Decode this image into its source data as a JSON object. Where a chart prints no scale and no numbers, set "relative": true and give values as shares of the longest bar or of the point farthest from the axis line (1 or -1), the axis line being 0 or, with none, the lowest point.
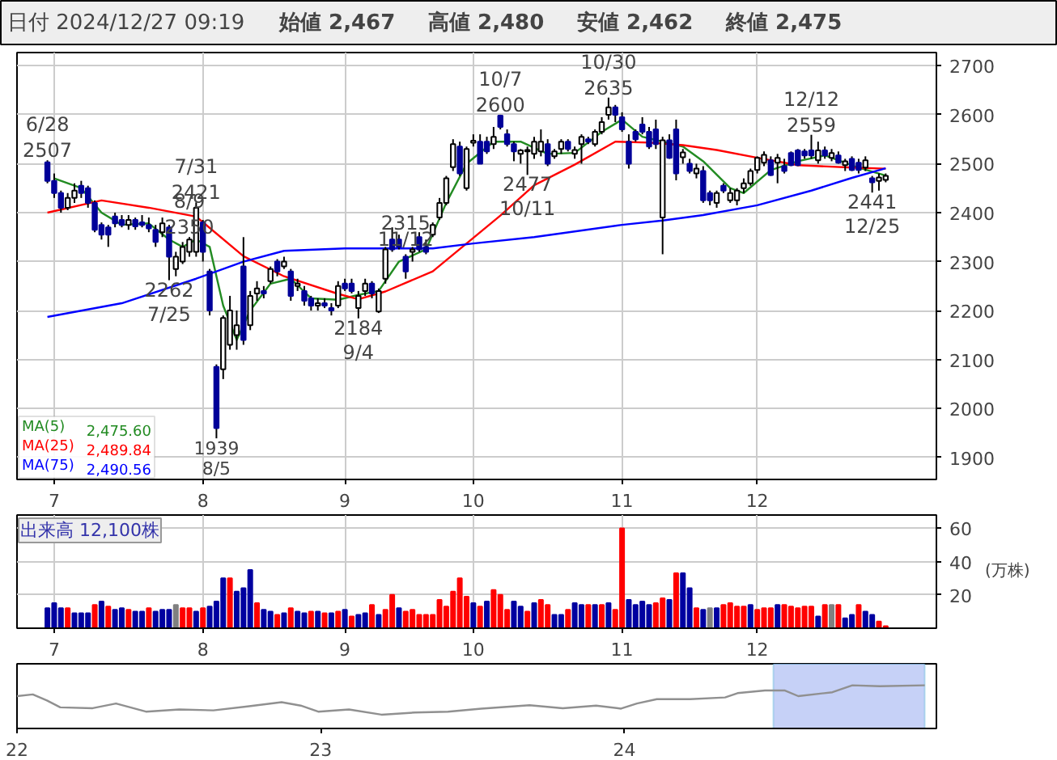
{
  "chart_data": [
    {
      "type": "candlestick",
      "title": "日付 2024/12/27 09:19",
      "annotations": [
        "始値 2,467",
        "高値 2,480",
        "安値 2,462",
        "終値 2,475",
        {
          "text": "6/28\n2507",
          "y": 2507
        },
        {
          "text": "7/31\n2421",
          "y": 2421
        },
        {
          "text": "2262\n7/25",
          "y": 2262
        },
        {
          "text": "8/9\n2350",
          "y": 2350
        },
        {
          "text": "1939\n8/5",
          "y": 1939
        },
        {
          "text": "2184\n9/4",
          "y": 2184
        },
        {
          "text": "10/7\n2600",
          "y": 2600
        },
        {
          "text": "2477\n10/11",
          "y": 2477
        },
        {
          "text": "10/30\n2635",
          "y": 2635
        },
        {
          "text": "2315\n11/12",
          "y": 2315
        },
        {
          "text": "12/12\n2559",
          "y": 2559
        },
        {
          "text": "2441\n12/25",
          "y": 2441
        }
      ],
      "categories": [
        null,
        "7",
        null,
        null,
        null,
        null,
        null,
        null,
        null,
        null,
        null,
        null,
        null,
        null,
        null,
        null,
        null,
        null,
        null,
        null,
        null,
        null,
        null,
        "8",
        null,
        null,
        null,
        null,
        null,
        null,
        null,
        null,
        null,
        null,
        null,
        null,
        null,
        null,
        null,
        null,
        null,
        null,
        null,
        null,
        "9",
        null,
        null,
        null,
        null,
        null,
        null,
        null,
        null,
        null,
        null,
        null,
        null,
        null,
        null,
        null,
        null,
        null,
        null,
        "10",
        null,
        null,
        null,
        null,
        null,
        null,
        null,
        null,
        null,
        null,
        null,
        null,
        null,
        null,
        null,
        null,
        null,
        null,
        null,
        null,
        null,
        "11",
        null,
        null,
        null,
        null,
        null,
        null,
        null,
        null,
        null,
        null,
        null,
        null,
        null,
        null,
        null,
        null,
        null,
        null,
        null,
        "12",
        null,
        null,
        null,
        null,
        null,
        null,
        null,
        null,
        null,
        null,
        null,
        null,
        null,
        null,
        null,
        null,
        null,
        null,
        null
      ],
      "ohlc": [
        [
          2503,
          2507,
          2460,
          2465
        ],
        [
          2465,
          2480,
          2430,
          2440
        ],
        [
          2440,
          2445,
          2400,
          2410
        ],
        [
          2410,
          2440,
          2405,
          2430
        ],
        [
          2430,
          2460,
          2420,
          2445
        ],
        [
          2455,
          2465,
          2430,
          2440
        ],
        [
          2450,
          2455,
          2410,
          2420
        ],
        [
          2420,
          2425,
          2360,
          2365
        ],
        [
          2375,
          2380,
          2345,
          2355
        ],
        [
          2370,
          2375,
          2330,
          2355
        ],
        [
          2392,
          2400,
          2370,
          2378
        ],
        [
          2385,
          2395,
          2370,
          2375
        ],
        [
          2375,
          2395,
          2365,
          2385
        ],
        [
          2385,
          2390,
          2365,
          2372
        ],
        [
          2380,
          2395,
          2370,
          2375
        ],
        [
          2375,
          2390,
          2360,
          2368
        ],
        [
          2365,
          2375,
          2330,
          2340
        ],
        [
          2360,
          2390,
          2350,
          2378
        ],
        [
          2370,
          2375,
          2262,
          2310
        ],
        [
          2285,
          2320,
          2270,
          2310
        ],
        [
          2300,
          2340,
          2295,
          2330
        ],
        [
          2320,
          2350,
          2310,
          2345
        ],
        [
          2320,
          2421,
          2310,
          2410
        ],
        [
          2380,
          2385,
          2300,
          2320
        ],
        [
          2280,
          2285,
          2190,
          2200
        ],
        [
          2085,
          2090,
          1939,
          1960
        ],
        [
          2080,
          2190,
          2060,
          2185
        ],
        [
          2130,
          2230,
          2120,
          2200
        ],
        [
          2150,
          2200,
          2120,
          2170
        ],
        [
          2290,
          2350,
          2130,
          2140
        ],
        [
          2170,
          2240,
          2160,
          2230
        ],
        [
          2235,
          2260,
          2220,
          2245
        ],
        [
          2240,
          2250,
          2225,
          2235
        ],
        [
          2260,
          2290,
          2255,
          2285
        ],
        [
          2300,
          2305,
          2270,
          2280
        ],
        [
          2290,
          2310,
          2285,
          2300
        ],
        [
          2280,
          2285,
          2220,
          2230
        ],
        [
          2250,
          2265,
          2240,
          2255
        ],
        [
          2240,
          2250,
          2210,
          2220
        ],
        [
          2225,
          2230,
          2200,
          2210
        ],
        [
          2210,
          2225,
          2200,
          2215
        ],
        [
          2215,
          2225,
          2205,
          2210
        ],
        [
          2205,
          2215,
          2190,
          2200
        ],
        [
          2210,
          2260,
          2205,
          2250
        ],
        [
          2255,
          2265,
          2240,
          2245
        ],
        [
          2255,
          2265,
          2235,
          2240
        ],
        [
          2205,
          2240,
          2184,
          2230
        ],
        [
          2240,
          2265,
          2230,
          2255
        ],
        [
          2255,
          2260,
          2225,
          2235
        ],
        [
          2198,
          2245,
          2195,
          2240
        ],
        [
          2265,
          2330,
          2255,
          2325
        ],
        [
          2345,
          2370,
          2320,
          2325
        ],
        [
          2345,
          2355,
          2325,
          2330
        ],
        [
          2310,
          2315,
          2265,
          2280
        ],
        [
          2320,
          2330,
          2300,
          2325
        ],
        [
          2350,
          2360,
          2320,
          2325
        ],
        [
          2330,
          2345,
          2315,
          2320
        ],
        [
          2355,
          2380,
          2350,
          2375
        ],
        [
          2390,
          2430,
          2385,
          2420
        ],
        [
          2420,
          2475,
          2415,
          2470
        ],
        [
          2493,
          2550,
          2485,
          2540
        ],
        [
          2535,
          2545,
          2475,
          2480
        ],
        [
          2450,
          2535,
          2445,
          2530
        ],
        [
          2543,
          2560,
          2535,
          2547
        ],
        [
          2545,
          2560,
          2500,
          2500
        ],
        [
          2545,
          2555,
          2520,
          2525
        ],
        [
          2540,
          2575,
          2530,
          2555
        ],
        [
          2598,
          2600,
          2570,
          2575
        ],
        [
          2560,
          2570,
          2535,
          2540
        ],
        [
          2540,
          2545,
          2505,
          2525
        ],
        [
          2520,
          2530,
          2500,
          2527
        ],
        [
          2525,
          2535,
          2477,
          2528
        ],
        [
          2520,
          2555,
          2510,
          2545
        ],
        [
          2525,
          2570,
          2515,
          2545
        ],
        [
          2540,
          2550,
          2495,
          2500
        ],
        [
          2515,
          2530,
          2510,
          2525
        ],
        [
          2530,
          2550,
          2520,
          2545
        ],
        [
          2545,
          2550,
          2525,
          2530
        ],
        [
          2520,
          2535,
          2510,
          2528
        ],
        [
          2540,
          2560,
          2500,
          2555
        ],
        [
          2550,
          2555,
          2540,
          2545
        ],
        [
          2540,
          2570,
          2535,
          2565
        ],
        [
          2565,
          2595,
          2560,
          2585
        ],
        [
          2600,
          2635,
          2590,
          2615
        ],
        [
          2615,
          2620,
          2585,
          2600
        ],
        [
          2595,
          2605,
          2565,
          2570
        ],
        [
          2545,
          2560,
          2490,
          2500
        ],
        [
          2565,
          2570,
          2545,
          2550
        ],
        [
          2580,
          2595,
          2560,
          2565
        ],
        [
          2565,
          2575,
          2530,
          2535
        ],
        [
          2570,
          2590,
          2530,
          2540
        ],
        [
          2390,
          2555,
          2315,
          2548
        ],
        [
          2548,
          2560,
          2510,
          2512
        ],
        [
          2570,
          2590,
          2466,
          2480
        ],
        [
          2513,
          2530,
          2500,
          2523
        ],
        [
          2500,
          2510,
          2480,
          2485
        ],
        [
          2480,
          2500,
          2470,
          2490
        ],
        [
          2485,
          2495,
          2420,
          2425
        ],
        [
          2440,
          2445,
          2415,
          2425
        ],
        [
          2420,
          2445,
          2410,
          2440
        ],
        [
          2455,
          2460,
          2440,
          2445
        ],
        [
          2425,
          2450,
          2420,
          2440
        ],
        [
          2425,
          2450,
          2415,
          2445
        ],
        [
          2450,
          2470,
          2440,
          2460
        ],
        [
          2460,
          2490,
          2455,
          2485
        ],
        [
          2487,
          2515,
          2480,
          2512
        ],
        [
          2502,
          2525,
          2495,
          2518
        ],
        [
          2507,
          2515,
          2475,
          2477
        ],
        [
          2502,
          2520,
          2460,
          2512
        ],
        [
          2495,
          2510,
          2480,
          2485
        ],
        [
          2522,
          2525,
          2495,
          2497
        ],
        [
          2527,
          2530,
          2495,
          2497
        ],
        [
          2525,
          2530,
          2510,
          2517
        ],
        [
          2527,
          2559,
          2510,
          2517
        ],
        [
          2507,
          2545,
          2500,
          2527
        ],
        [
          2527,
          2535,
          2510,
          2517
        ],
        [
          2512,
          2530,
          2505,
          2522
        ],
        [
          2517,
          2525,
          2500,
          2502
        ],
        [
          2497,
          2510,
          2485,
          2505
        ],
        [
          2510,
          2515,
          2485,
          2487
        ],
        [
          2502,
          2510,
          2480,
          2487
        ],
        [
          2492,
          2515,
          2485,
          2507
        ],
        [
          2470,
          2475,
          2441,
          2462
        ],
        [
          2465,
          2480,
          2445,
          2472
        ],
        [
          2467,
          2480,
          2462,
          2475
        ]
      ],
      "colors": [
        "#000099",
        "#000099",
        "#000099",
        "#ffffff",
        "#ffffff",
        "#000099",
        "#000099",
        "#000099",
        "#000099",
        "#000099",
        "#000099",
        "#000099",
        "#ffffff",
        "#000099",
        "#000099",
        "#000099",
        "#000099",
        "#ffffff",
        "#000099",
        "#ffffff",
        "#ffffff",
        "#ffffff",
        "#ffffff",
        "#000099",
        "#000099",
        "#000099",
        "#ffffff",
        "#ffffff",
        "#ffffff",
        "#000099",
        "#ffffff",
        "#ffffff",
        "#000099",
        "#ffffff",
        "#000099",
        "#ffffff",
        "#000099",
        "#ffffff",
        "#000099",
        "#000099",
        "#ffffff",
        "#000099",
        "#000099",
        "#ffffff",
        "#000099",
        "#000099",
        "#ffffff",
        "#ffffff",
        "#000099",
        "#ffffff",
        "#ffffff",
        "#000099",
        "#000099",
        "#000099",
        "#ffffff",
        "#000099",
        "#000099",
        "#ffffff",
        "#ffffff",
        "#ffffff",
        "#ffffff",
        "#000099",
        "#ffffff",
        "#ffffff",
        "#000099",
        "#000099",
        "#ffffff",
        "#000099",
        "#000099",
        "#000099",
        "#ffffff",
        "#ffffff",
        "#ffffff",
        "#ffffff",
        "#000099",
        "#ffffff",
        "#ffffff",
        "#000099",
        "#ffffff",
        "#ffffff",
        "#000099",
        "#ffffff",
        "#ffffff",
        "#ffffff",
        "#000099",
        "#000099",
        "#000099",
        "#000099",
        "#000099",
        "#000099",
        "#000099",
        "#ffffff",
        "#000099",
        "#000099",
        "#ffffff",
        "#000099",
        "#ffffff",
        "#000099",
        "#000099",
        "#ffffff",
        "#000099",
        "#ffffff",
        "#ffffff",
        "#ffffff",
        "#ffffff",
        "#ffffff",
        "#ffffff",
        "#000099",
        "#ffffff",
        "#000099",
        "#000099",
        "#000099",
        "#000099",
        "#000099",
        "#ffffff",
        "#000099",
        "#ffffff",
        "#000099",
        "#ffffff",
        "#000099",
        "#000099",
        "#ffffff",
        "#000099",
        "#ffffff",
        "#ffffff"
      ],
      "series": [
        {
          "name": "MA(5) 2,475.60",
          "type": "line",
          "color": "#228b22",
          "values": [
            null,
            2470,
            null,
            null,
            null,
            2450,
            null,
            null,
            2400,
            null,
            null,
            2375,
            null,
            null,
            null,
            2378,
            null,
            null,
            2345,
            null,
            2330,
            null,
            2345,
            null,
            2330,
            null,
            2210,
            null,
            2140,
            null,
            2200,
            null,
            null,
            2255,
            null,
            null,
            2265,
            null,
            null,
            2225,
            null,
            null,
            null,
            2222,
            null,
            null,
            2232,
            null,
            null,
            2240,
            null,
            null,
            2300,
            null,
            null,
            null,
            2325,
            null,
            null,
            2420,
            null,
            null,
            2500,
            null,
            null,
            null,
            2545,
            null,
            null,
            null,
            2545,
            null,
            null,
            null,
            2520,
            null,
            null,
            null,
            2522,
            null,
            null,
            null,
            2565,
            null,
            null,
            2590,
            null,
            null,
            2555,
            null,
            null,
            2545,
            null,
            null,
            2535,
            null,
            null,
            2505,
            null,
            null,
            null,
            2450,
            null,
            2440,
            null,
            null,
            null,
            2487,
            null,
            null,
            null,
            2505,
            null,
            null,
            null,
            2517,
            null,
            null,
            null,
            null,
            2492,
            null,
            null,
            null,
            2475.6
          ]
        },
        {
          "name": "MA(25) 2,489.84",
          "type": "line",
          "color": "#ff0000",
          "values": [
            2400,
            null,
            null,
            null,
            null,
            null,
            null,
            null,
            2425,
            null,
            null,
            null,
            null,
            null,
            null,
            2410,
            null,
            null,
            null,
            null,
            null,
            null,
            2392,
            null,
            null,
            null,
            null,
            null,
            null,
            2311,
            null,
            null,
            null,
            null,
            null,
            2270,
            null,
            null,
            null,
            null,
            null,
            null,
            null,
            2234,
            null,
            null,
            2223,
            null,
            null,
            null,
            2239,
            null,
            null,
            null,
            null,
            null,
            null,
            2280,
            null,
            null,
            null,
            null,
            2337,
            null,
            null,
            null,
            null,
            2394,
            null,
            null,
            null,
            null,
            2456,
            null,
            null,
            null,
            null,
            null,
            2498,
            null,
            null,
            null,
            null,
            null,
            2545,
            null,
            null,
            null,
            null,
            2543,
            null,
            null,
            null,
            null,
            2538,
            null,
            null,
            null,
            null,
            2528,
            null,
            null,
            null,
            null,
            null,
            2512,
            null,
            null,
            null,
            null,
            null,
            2497,
            null,
            null,
            null,
            null,
            null,
            null,
            null,
            2492,
            null,
            null,
            null,
            null,
            2489.84
          ]
        },
        {
          "name": "MA(75) 2,490.56",
          "type": "line",
          "color": "#0000ff",
          "values": [
            2187,
            null,
            null,
            null,
            null,
            null,
            null,
            null,
            null,
            null,
            null,
            2215,
            null,
            null,
            null,
            null,
            null,
            null,
            null,
            null,
            null,
            null,
            2265,
            null,
            null,
            null,
            null,
            null,
            null,
            2300,
            null,
            null,
            null,
            null,
            null,
            2322,
            null,
            null,
            null,
            null,
            null,
            null,
            null,
            null,
            2327,
            null,
            null,
            null,
            null,
            null,
            null,
            null,
            null,
            null,
            null,
            null,
            null,
            2327,
            null,
            null,
            null,
            null,
            null,
            2337,
            null,
            null,
            null,
            null,
            null,
            null,
            null,
            null,
            2350,
            null,
            null,
            null,
            null,
            null,
            null,
            null,
            null,
            null,
            null,
            null,
            null,
            2375,
            null,
            null,
            null,
            null,
            null,
            2384,
            null,
            null,
            null,
            null,
            null,
            2395,
            null,
            null,
            null,
            null,
            null,
            null,
            null,
            2415,
            null,
            null,
            null,
            null,
            null,
            null,
            null,
            2445,
            null,
            null,
            null,
            null,
            null,
            2471,
            null,
            null,
            null,
            null,
            2490.56
          ]
        }
      ],
      "ylim": [
        1855,
        2727
      ],
      "yticks": [
        1900,
        2000,
        2100,
        2200,
        2300,
        2400,
        2500,
        2600,
        2700
      ],
      "grid": true,
      "legend": "bottom left"
    },
    {
      "type": "bar",
      "title": "出来高 12,100株",
      "ylabel": "(万株)",
      "categories": [
        null,
        "7",
        null,
        null,
        null,
        null,
        null,
        null,
        null,
        null,
        null,
        null,
        null,
        null,
        null,
        null,
        null,
        null,
        null,
        null,
        null,
        null,
        null,
        "8",
        null,
        null,
        null,
        null,
        null,
        null,
        null,
        null,
        null,
        null,
        null,
        null,
        null,
        null,
        null,
        null,
        null,
        null,
        null,
        null,
        "9",
        null,
        null,
        null,
        null,
        null,
        null,
        null,
        null,
        null,
        null,
        null,
        null,
        null,
        null,
        null,
        null,
        null,
        null,
        "10",
        null,
        null,
        null,
        null,
        null,
        null,
        null,
        null,
        null,
        null,
        null,
        null,
        null,
        null,
        null,
        null,
        null,
        null,
        null,
        null,
        null,
        "11",
        null,
        null,
        null,
        null,
        null,
        null,
        null,
        null,
        null,
        null,
        null,
        null,
        null,
        null,
        null,
        null,
        null,
        null,
        null,
        "12",
        null,
        null,
        null,
        null,
        null,
        null,
        null,
        null,
        null,
        null,
        null,
        null,
        null,
        null,
        null,
        null,
        null,
        null,
        null
      ],
      "values": [
        12,
        15,
        12,
        12,
        9,
        9,
        9,
        14,
        16,
        13,
        11,
        12,
        11,
        10,
        10,
        12,
        10,
        11,
        11,
        14,
        12,
        12,
        10,
        12,
        13,
        16,
        30,
        30,
        22,
        24,
        35,
        15,
        11,
        10,
        8,
        9,
        12,
        10,
        9,
        10,
        10,
        9,
        9,
        10,
        11,
        7,
        8,
        9,
        14,
        8,
        11,
        20,
        12,
        10,
        11,
        8,
        8,
        8,
        17,
        13,
        22,
        30,
        19,
        15,
        13,
        16,
        23,
        20,
        11,
        16,
        13,
        10,
        15,
        17,
        14,
        8,
        8,
        11,
        15,
        14,
        14,
        14,
        14,
        15,
        11,
        60,
        17,
        14,
        16,
        14,
        15,
        18,
        17,
        33,
        33,
        24,
        12,
        11,
        12,
        12,
        14,
        15,
        13,
        13,
        14,
        11,
        12,
        12,
        14,
        14,
        13,
        12,
        13,
        13,
        7,
        14,
        14,
        14,
        6,
        8,
        14,
        10,
        8,
        4,
        1.21
      ],
      "colors": [
        "#0000a0",
        "#0000a0",
        "#0000a0",
        "#ff0000",
        "#0000a0",
        "#0000a0",
        "#0000a0",
        "#ff0000",
        "#0000a0",
        "#ff0000",
        "#0000a0",
        "#0000a0",
        "#ff0000",
        "#0000a0",
        "#0000a0",
        "#ff0000",
        "#0000a0",
        "#0000a0",
        "#0000a0",
        "#808080",
        "#ff0000",
        "#ff0000",
        "#0000a0",
        "#ff0000",
        "#0000a0",
        "#0000a0",
        "#0000a0",
        "#ff0000",
        "#0000a0",
        "#0000a0",
        "#0000a0",
        "#ff0000",
        "#0000a0",
        "#0000a0",
        "#ff0000",
        "#0000a0",
        "#ff0000",
        "#0000a0",
        "#0000a0",
        "#ff0000",
        "#0000a0",
        "#ff0000",
        "#0000a0",
        "#ff0000",
        "#0000a0",
        "#ff0000",
        "#0000a0",
        "#0000a0",
        "#ff0000",
        "#0000a0",
        "#ff0000",
        "#ff0000",
        "#0000a0",
        "#ff0000",
        "#ff0000",
        "#ff0000",
        "#ff0000",
        "#ff0000",
        "#ff0000",
        "#ff0000",
        "#ff0000",
        "#ff0000",
        "#ff0000",
        "#0000a0",
        "#ff0000",
        "#0000a0",
        "#ff0000",
        "#ff0000",
        "#ff0000",
        "#0000a0",
        "#0000a0",
        "#ff0000",
        "#0000a0",
        "#ff0000",
        "#ff0000",
        "#0000a0",
        "#0000a0",
        "#ff0000",
        "#0000a0",
        "#0000a0",
        "#ff0000",
        "#0000a0",
        "#ff0000",
        "#0000a0",
        "#ff0000",
        "#ff0000",
        "#0000a0",
        "#0000a0",
        "#0000a0",
        "#0000a0",
        "#ff0000",
        "#ff0000",
        "#0000a0",
        "#ff0000",
        "#0000a0",
        "#0000a0",
        "#ff0000",
        "#0000a0",
        "#808080",
        "#0000a0",
        "#ff0000",
        "#ff0000",
        "#ff0000",
        "#ff0000",
        "#0000a0",
        "#ff0000",
        "#ff0000",
        "#ff0000",
        "#0000a0",
        "#ff0000",
        "#ff0000",
        "#ff0000",
        "#ff0000",
        "#ff0000",
        "#0000a0",
        "#ff0000",
        "#808080",
        "#ff0000",
        "#0000a0",
        "#0000a0",
        "#ff0000",
        "#0000a0",
        "#0000a0",
        "#ff0000",
        "#ff0000"
      ],
      "ylim": [
        0,
        68
      ],
      "yticks": [
        20,
        40,
        60
      ],
      "grid": true
    },
    {
      "type": "line",
      "relative": true,
      "tick_labels": "x",
      "series": [
        {
          "color": "#909090",
          "x": [
            "2022-01-01",
            "2022-01-20",
            "2022-02-06",
            "2022-02-22",
            "2022-04-02",
            "2022-04-30",
            "2022-06-05",
            "2022-07-15",
            "2022-08-25",
            "2022-10-05",
            "2022-11-15",
            "2022-12-08",
            "2022-12-29",
            "2023-02-04",
            "2023-03-15",
            "2023-04-24",
            "2023-06-03",
            "2023-07-13",
            "2023-09-09",
            "2023-10-19",
            "2023-11-28",
            "2023-12-28",
            "2024-01-16",
            "2024-02-09",
            "2024-03-20",
            "2024-05-01",
            "2024-05-16",
            "2024-06-18",
            "2024-07-12",
            "2024-07-28",
            "2024-09-07",
            "2024-10-01",
            "2024-11-03",
            "2024-12-27"
          ],
          "values": [
            0.75,
            0.79,
            0.65,
            0.49,
            0.47,
            0.58,
            0.39,
            0.44,
            0.42,
            0.51,
            0.61,
            0.53,
            0.39,
            0.44,
            0.32,
            0.37,
            0.39,
            0.46,
            0.54,
            0.47,
            0.53,
            0.46,
            0.58,
            0.68,
            0.68,
            0.72,
            0.82,
            0.88,
            0.88,
            0.75,
            0.84,
            1,
            0.98,
            1
          ]
        }
      ],
      "xlim": [
        "2022-01-01",
        "2025-01-10"
      ],
      "xticks": [
        {
          "value": "2022-01-01",
          "label": "22"
        },
        {
          "value": "2023-01-01",
          "label": "23"
        },
        {
          "value": "2024-01-01",
          "label": "24"
        }
      ],
      "bands": [
        {
          "axis": "x",
          "from": "2024-06-28",
          "to": "2024-12-27",
          "color": "#b8c6f5"
        }
      ]
    }
  ]
}
